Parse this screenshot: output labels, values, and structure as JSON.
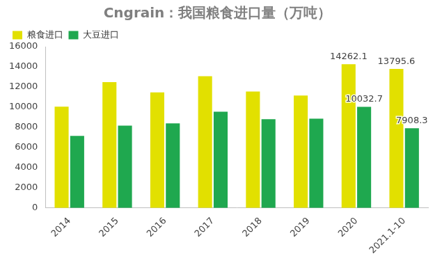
{
  "chart_data": {
    "type": "bar",
    "title": "Cngrain：我国粮食进口量（万吨）",
    "categories": [
      "2014",
      "2015",
      "2016",
      "2017",
      "2018",
      "2019",
      "2020",
      "2021.1-10"
    ],
    "series": [
      {
        "name": "粮食进口",
        "color": "#e2e000",
        "values": [
          10042,
          12477,
          11468,
          13062,
          11555,
          11144,
          14262.1,
          13795.6
        ],
        "value_labels": [
          null,
          null,
          null,
          null,
          null,
          null,
          "14262.1",
          "13795.6"
        ]
      },
      {
        "name": "大豆进口",
        "color": "#1fa84f",
        "values": [
          7140,
          8169,
          8391,
          9553,
          8803,
          8851,
          10032.7,
          7908.3
        ],
        "value_labels": [
          null,
          null,
          null,
          null,
          null,
          null,
          "10032.7",
          "7908.3"
        ]
      }
    ],
    "ylim": [
      0,
      16000
    ],
    "yticks": [
      0,
      2000,
      4000,
      6000,
      8000,
      10000,
      12000,
      14000,
      16000
    ],
    "grid": false,
    "legend": "top",
    "data_labels": true
  }
}
